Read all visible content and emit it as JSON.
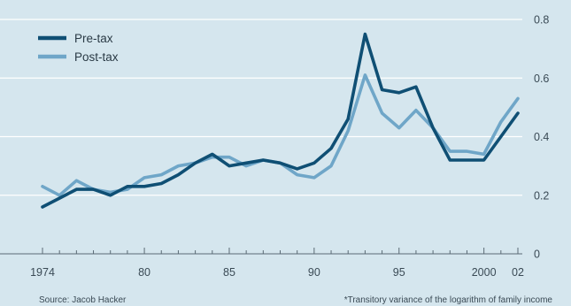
{
  "chart_data": {
    "type": "line",
    "x": [
      1974,
      1975,
      1976,
      1977,
      1978,
      1979,
      1980,
      1981,
      1982,
      1983,
      1984,
      1985,
      1986,
      1987,
      1988,
      1989,
      1990,
      1991,
      1992,
      1993,
      1994,
      1995,
      1996,
      1997,
      1998,
      1999,
      2000,
      2001,
      2002
    ],
    "series": [
      {
        "name": "Pre-tax",
        "color": "#0f4f74",
        "values": [
          0.16,
          0.19,
          0.22,
          0.22,
          0.2,
          0.23,
          0.23,
          0.24,
          0.27,
          0.31,
          0.34,
          0.3,
          0.31,
          0.32,
          0.31,
          0.29,
          0.31,
          0.36,
          0.46,
          0.75,
          0.56,
          0.55,
          0.57,
          0.43,
          0.32,
          0.32,
          0.32,
          0.4,
          0.48
        ]
      },
      {
        "name": "Post-tax",
        "color": "#6fa6c8",
        "values": [
          0.23,
          0.2,
          0.25,
          0.22,
          0.21,
          0.22,
          0.26,
          0.27,
          0.3,
          0.31,
          0.33,
          0.33,
          0.3,
          0.32,
          0.31,
          0.27,
          0.26,
          0.3,
          0.42,
          0.61,
          0.48,
          0.43,
          0.49,
          0.43,
          0.35,
          0.35,
          0.34,
          0.45,
          0.53
        ]
      }
    ],
    "x_tick_labels": [
      "1974",
      "80",
      "85",
      "90",
      "95",
      "2000",
      "02"
    ],
    "x_tick_values": [
      1974,
      1980,
      1985,
      1990,
      1995,
      2000,
      2002
    ],
    "y_tick_labels": [
      "0",
      "0.2",
      "0.4",
      "0.6",
      "0.8"
    ],
    "y_tick_values": [
      0,
      0.2,
      0.4,
      0.6,
      0.8
    ],
    "ylim": [
      0,
      0.8
    ],
    "xlim": [
      1974,
      2002
    ],
    "grid": true,
    "legend_position": "top-left",
    "y_axis_side": "right",
    "footer_left": "Source: Jacob Hacker",
    "footer_right": "*Transitory variance of the logarithm of family income",
    "background_color": "#d5e6ee",
    "grid_color": "#ffffff"
  }
}
